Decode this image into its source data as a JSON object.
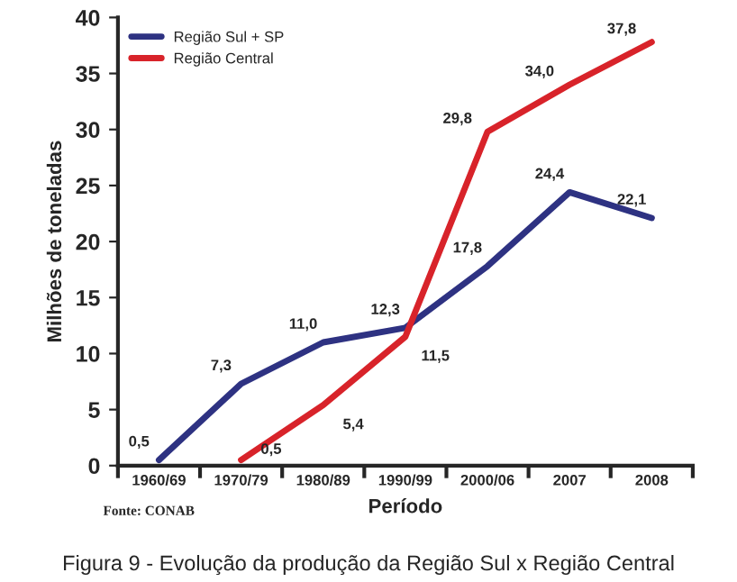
{
  "chart_data": {
    "type": "line",
    "title": "Figura 9 - Evolução da produção da Região Sul x Região Central",
    "xlabel": "Período",
    "ylabel": "Milhões de toneladas",
    "categories": [
      "1960/69",
      "1970/79",
      "1980/89",
      "1990/99",
      "2000/06",
      "2007",
      "2008"
    ],
    "series": [
      {
        "name": "Região Sul + SP",
        "color": "#2e3282",
        "values": [
          0.5,
          7.3,
          11.0,
          12.3,
          17.8,
          24.4,
          22.1
        ],
        "value_labels": [
          "0,5",
          "7,3",
          "11,0",
          "12,3",
          "17,8",
          "24,4",
          "22,1"
        ]
      },
      {
        "name": "Região Central",
        "color": "#d8232a",
        "values": [
          null,
          0.5,
          5.4,
          11.5,
          29.8,
          34.0,
          37.8
        ],
        "value_labels": [
          null,
          "0,5",
          "5,4",
          "11,5",
          "29,8",
          "34,0",
          "37,8"
        ]
      }
    ],
    "ylim": [
      0,
      40
    ],
    "yticks": [
      0,
      5,
      10,
      15,
      20,
      25,
      30,
      35,
      40
    ],
    "grid": false,
    "legend": "top left",
    "marker": "none",
    "line_style": "solid",
    "annotations": [
      "Fonte: CONAB"
    ]
  }
}
